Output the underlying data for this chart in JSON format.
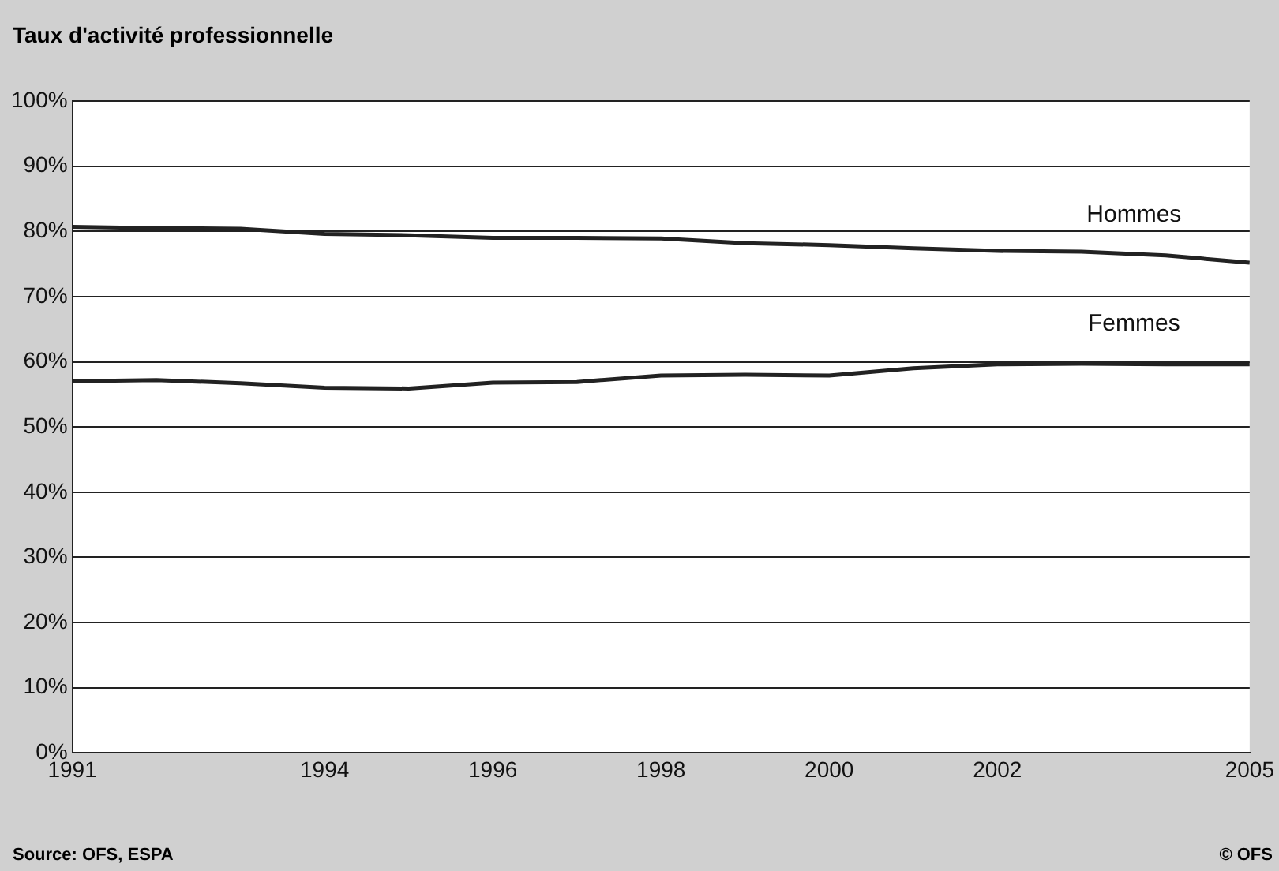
{
  "chart_data": {
    "type": "line",
    "title": "Taux d'activité professionnelle",
    "x": [
      1991,
      1992,
      1993,
      1994,
      1995,
      1996,
      1997,
      1998,
      1999,
      2000,
      2001,
      2002,
      2003,
      2004,
      2005
    ],
    "series": [
      {
        "name": "Hommes",
        "color": "#222222",
        "values": [
          80.7,
          80.5,
          80.4,
          79.6,
          79.4,
          79.0,
          79.0,
          78.9,
          78.2,
          77.9,
          77.4,
          77.0,
          76.9,
          76.3,
          75.2
        ]
      },
      {
        "name": "Femmes",
        "color": "#222222",
        "values": [
          57.0,
          57.2,
          56.7,
          56.0,
          55.9,
          56.8,
          56.9,
          57.9,
          58.0,
          57.9,
          59.0,
          59.6,
          59.7,
          59.6,
          59.6
        ]
      }
    ],
    "xlim": [
      1991,
      2005
    ],
    "xticks": [
      1991,
      1994,
      1996,
      1998,
      2000,
      2002,
      2005
    ],
    "ylim": [
      0,
      100
    ],
    "yticks": [
      {
        "value": 0,
        "label": "0%"
      },
      {
        "value": 10,
        "label": "10%"
      },
      {
        "value": 20,
        "label": "20%"
      },
      {
        "value": 30,
        "label": "30%"
      },
      {
        "value": 40,
        "label": "40%"
      },
      {
        "value": 50,
        "label": "50%"
      },
      {
        "value": 60,
        "label": "60%"
      },
      {
        "value": 70,
        "label": "70%"
      },
      {
        "value": 80,
        "label": "80%"
      },
      {
        "value": 90,
        "label": "90%"
      },
      {
        "value": 100,
        "label": "100%"
      }
    ],
    "grid": "y",
    "legend": false,
    "marker": "none",
    "line_style": "solid",
    "annotations": [
      "Source: OFS, ESPA",
      "© OFS"
    ]
  }
}
